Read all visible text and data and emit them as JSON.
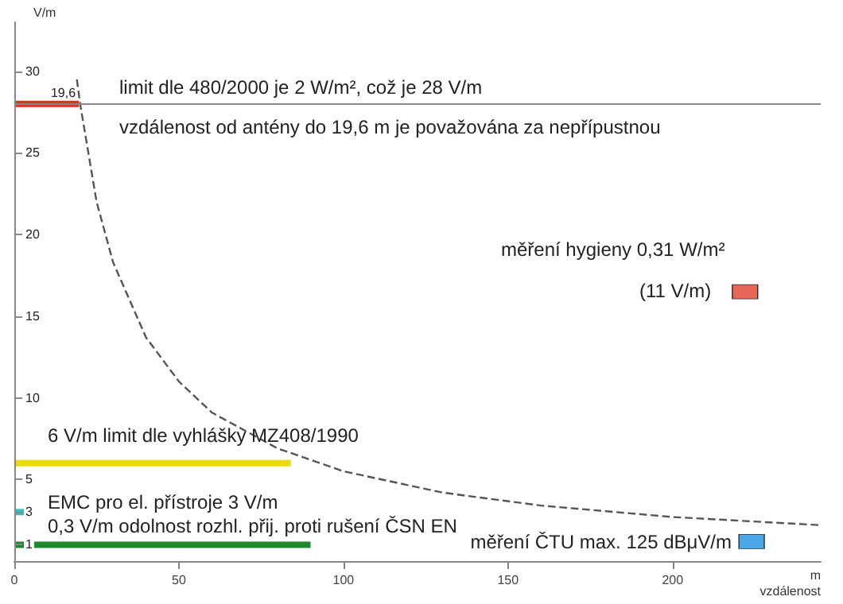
{
  "chart_data": {
    "type": "line",
    "xlabel": "m\nvzdálenost",
    "ylabel": "V/m",
    "xlim": [
      0,
      245
    ],
    "ylim": [
      0,
      33
    ],
    "xticks": [
      0,
      50,
      100,
      150,
      200
    ],
    "yticks": [
      1,
      3,
      5,
      10,
      15,
      20,
      25,
      30
    ],
    "grid": false,
    "series": [
      {
        "x": [
          0,
          19.6
        ],
        "values": [
          28,
          28
        ],
        "color": "#e03020"
      },
      {
        "x": [
          0,
          84
        ],
        "values": [
          6,
          6
        ],
        "color": "#e8dc00"
      },
      {
        "x": [
          0,
          5
        ],
        "values": [
          3,
          3
        ],
        "color": "#30c0c8"
      },
      {
        "x": [
          0,
          90
        ],
        "values": [
          1,
          1
        ],
        "color": "#1a8a2a"
      },
      {
        "x": [
          19,
          20,
          25,
          30,
          40,
          50,
          60,
          80,
          100,
          130,
          160,
          200,
          245
        ],
        "values": [
          29.5,
          28,
          22,
          18.3,
          13.7,
          11,
          9.1,
          6.9,
          5.5,
          4.2,
          3.4,
          2.7,
          2.2
        ],
        "color": "#555555",
        "line_style": "dashed"
      },
      {
        "type": "scatter",
        "x": [
          222
        ],
        "values": [
          16.5
        ],
        "color": "#e04030",
        "marker": "square"
      },
      {
        "type": "scatter",
        "x": [
          224
        ],
        "values": [
          1.2
        ],
        "color": "#2090e0",
        "marker": "square"
      }
    ],
    "ref_lines": [
      {
        "axis": "y",
        "value": 28,
        "color": "#888888"
      }
    ],
    "annotations": [
      "limit dle 480/2000 je 2 W/m², což je 28 V/m",
      "vzdálenost od antény do 19,6 m je považována za nepřípustnou",
      "měření hygieny 0,31 W/m²",
      "(11 V/m)",
      "6 V/m limit dle vyhlášky MZ408/1990",
      "EMC pro el. přístroje 3 V/m",
      "0,3 V/m odolnost rozhl. přij. proti rušení ČSN EN",
      "měření ČTU max. 125 dBμV/m",
      {
        "text": "19,6",
        "x": 19.6,
        "y": 28
      }
    ]
  }
}
